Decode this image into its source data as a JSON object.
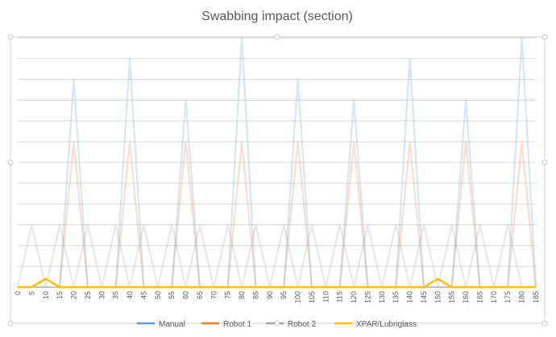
{
  "chart_data": {
    "type": "line",
    "title": "Swabbing impact (section)",
    "xlabel": "",
    "ylabel": "",
    "x": [
      0,
      5,
      10,
      15,
      20,
      25,
      30,
      35,
      40,
      45,
      50,
      55,
      60,
      65,
      70,
      75,
      80,
      85,
      90,
      95,
      100,
      105,
      110,
      115,
      120,
      125,
      130,
      135,
      140,
      145,
      150,
      155,
      160,
      165,
      170,
      175,
      180,
      185
    ],
    "ylim": [
      0,
      6
    ],
    "grid": true,
    "legend_position": "bottom",
    "series": [
      {
        "name": "Manual",
        "color": "#5b9bd5",
        "display_opacity": 0.25,
        "values": [
          0,
          0,
          0,
          0,
          5,
          0,
          0,
          0,
          5.5,
          0,
          0,
          0,
          4.5,
          0,
          0,
          0,
          6,
          0,
          0,
          0,
          5,
          0,
          0,
          0,
          4.5,
          0,
          0,
          0,
          5.5,
          0,
          0,
          0,
          4.5,
          0,
          0,
          0,
          6,
          0
        ]
      },
      {
        "name": "Robot 1",
        "color": "#ed7d31",
        "display_opacity": 0.25,
        "values": [
          0,
          0,
          0,
          0,
          3.5,
          0,
          0,
          0,
          3.5,
          0,
          0,
          0,
          3.5,
          0,
          0,
          0,
          3.5,
          0,
          0,
          0,
          3.5,
          0,
          0,
          0,
          3.5,
          0,
          0,
          0,
          3.5,
          0,
          0,
          0,
          3.5,
          0,
          0,
          0,
          3.5,
          0
        ]
      },
      {
        "name": "Robot 2",
        "color": "#a5a5a5",
        "display_opacity": 0.25,
        "values": [
          0,
          1.5,
          0,
          1.5,
          0,
          1.5,
          0,
          1.5,
          0,
          1.5,
          0,
          1.5,
          0,
          1.5,
          0,
          1.5,
          0,
          1.5,
          0,
          1.5,
          0,
          1.5,
          0,
          1.5,
          0,
          1.5,
          0,
          1.5,
          0,
          1.5,
          0,
          1.5,
          0,
          1.5,
          0,
          1.5,
          0,
          0
        ]
      },
      {
        "name": "XPAR/Lubriglass",
        "color": "#ffc000",
        "display_opacity": 1,
        "values": [
          0,
          0,
          0.2,
          0,
          0,
          0,
          0,
          0,
          0,
          0,
          0,
          0,
          0,
          0,
          0,
          0,
          0,
          0,
          0,
          0,
          0,
          0,
          0,
          0,
          0,
          0,
          0,
          0,
          0,
          0,
          0.2,
          0,
          0,
          0,
          0,
          0,
          0,
          0
        ]
      }
    ]
  }
}
